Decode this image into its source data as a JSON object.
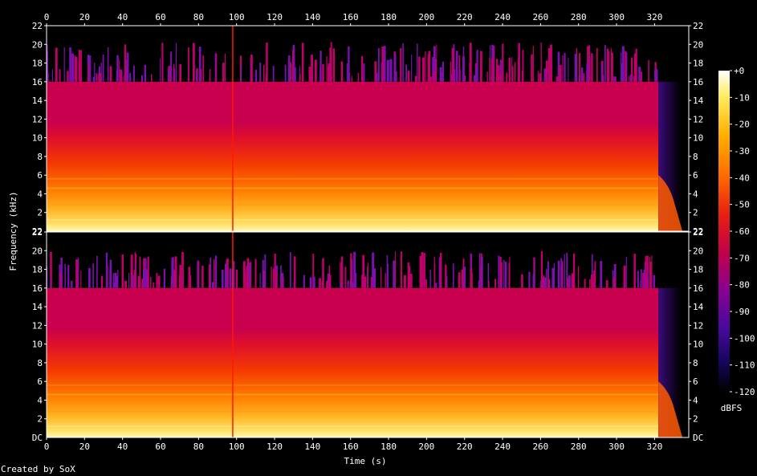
{
  "chart_data": {
    "type": "heatmap",
    "title": "",
    "xlabel": "Time (s)",
    "ylabel": "Frequency (kHz)",
    "x_ticks": [
      "0",
      "20",
      "40",
      "60",
      "80",
      "100",
      "120",
      "140",
      "160",
      "180",
      "200",
      "220",
      "240",
      "260",
      "280",
      "300",
      "320"
    ],
    "xlim": [
      0,
      338
    ],
    "channels": [
      {
        "y_ticks": [
          "2",
          "4",
          "6",
          "8",
          "10",
          "12",
          "14",
          "16",
          "18",
          "20",
          "22"
        ],
        "bottom_tick": "22",
        "ylim": [
          0,
          22
        ]
      },
      {
        "y_ticks": [
          "2",
          "4",
          "6",
          "8",
          "10",
          "12",
          "14",
          "16",
          "18",
          "20",
          "22"
        ],
        "bottom_tick": "DC",
        "ylim": [
          0,
          22
        ]
      }
    ],
    "colorbar": {
      "label": "dBFS",
      "ticks": [
        "+0",
        "-10",
        "-20",
        "-30",
        "-40",
        "-50",
        "-60",
        "-70",
        "-80",
        "-90",
        "-100",
        "-110",
        "-120"
      ],
      "range": [
        -120,
        0
      ]
    },
    "audio_end_s": 322,
    "lowpass_cutoff_khz": 16,
    "spike_time_s": 98,
    "colors": {
      "background": "#000000",
      "text": "#ffffff",
      "colormap": [
        "#000000",
        "#1a0540",
        "#3c0a8a",
        "#7a00a0",
        "#b0005a",
        "#d80020",
        "#f22a00",
        "#ff6a00",
        "#ffa800",
        "#ffd400",
        "#fff07a",
        "#ffffff"
      ]
    }
  },
  "credit": "Created by SoX"
}
